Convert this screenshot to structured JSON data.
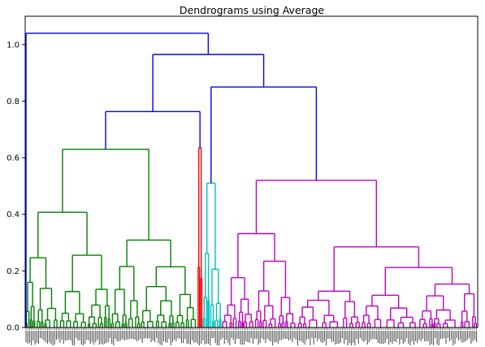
{
  "chart_data": {
    "type": "dendrogram",
    "title": "Dendrograms using Average",
    "xlabel": "",
    "ylabel": "",
    "ylim": [
      0,
      1.1
    ],
    "yticks": [
      "0.0",
      "0.2",
      "0.4",
      "0.6",
      "0.8",
      "1.0"
    ],
    "grid": false,
    "legend": "none",
    "colors": {
      "green": "#008000",
      "red": "#ff0000",
      "cyan": "#00bfbf",
      "magenta": "#bf00bf",
      "blue": "#0000ff"
    },
    "clusters": [
      {
        "color": "green",
        "leaf_range": [
          0.0,
          0.38
        ],
        "height": 0.63
      },
      {
        "color": "red",
        "leaf_range": [
          0.38,
          0.392
        ],
        "height": 0.635
      },
      {
        "color": "cyan",
        "leaf_range": [
          0.392,
          0.434
        ],
        "height": 0.51
      },
      {
        "color": "magenta",
        "leaf_range": [
          0.434,
          1.0
        ],
        "height": 0.52
      }
    ],
    "merges": [
      {
        "color": "blue",
        "height": 0.763,
        "children": [
          "green",
          "red"
        ]
      },
      {
        "color": "blue",
        "height": 0.85,
        "children": [
          "cyan",
          "magenta"
        ]
      },
      {
        "color": "blue",
        "height": 0.965,
        "children": [
          "green+red",
          "cyan+magenta"
        ]
      },
      {
        "color": "blue",
        "height": 1.04,
        "children": [
          "singleton",
          "rest"
        ]
      }
    ]
  }
}
